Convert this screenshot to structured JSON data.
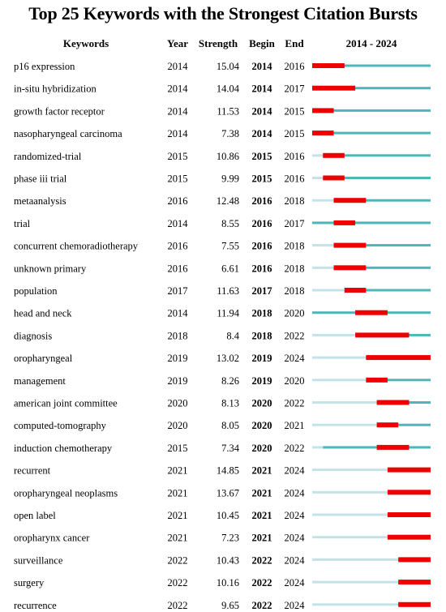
{
  "chart_data": {
    "type": "table",
    "title": "Top 25 Keywords with the Strongest Citation Bursts",
    "headers": {
      "keyword": "Keywords",
      "year": "Year",
      "strength": "Strength",
      "begin": "Begin",
      "end": "End",
      "range": "2014 - 2024"
    },
    "range_start": 2014,
    "range_end": 2024,
    "colors": {
      "burst": "#ee0000",
      "active": "#4db6b8",
      "inactive": "#c4e3e8"
    },
    "rows": [
      {
        "keyword": "p16 expression",
        "year": "2014",
        "strength": "15.04",
        "begin": "2014",
        "end": "2016"
      },
      {
        "keyword": "in-situ hybridization",
        "year": "2014",
        "strength": "14.04",
        "begin": "2014",
        "end": "2017"
      },
      {
        "keyword": "growth factor receptor",
        "year": "2014",
        "strength": "11.53",
        "begin": "2014",
        "end": "2015"
      },
      {
        "keyword": "nasopharyngeal carcinoma",
        "year": "2014",
        "strength": "7.38",
        "begin": "2014",
        "end": "2015"
      },
      {
        "keyword": "randomized-trial",
        "year": "2015",
        "strength": "10.86",
        "begin": "2015",
        "end": "2016"
      },
      {
        "keyword": "phase iii trial",
        "year": "2015",
        "strength": "9.99",
        "begin": "2015",
        "end": "2016"
      },
      {
        "keyword": "metaanalysis",
        "year": "2016",
        "strength": "12.48",
        "begin": "2016",
        "end": "2018"
      },
      {
        "keyword": "trial",
        "year": "2014",
        "strength": "8.55",
        "begin": "2016",
        "end": "2017"
      },
      {
        "keyword": "concurrent chemoradiotherapy",
        "year": "2016",
        "strength": "7.55",
        "begin": "2016",
        "end": "2018"
      },
      {
        "keyword": "unknown primary",
        "year": "2016",
        "strength": "6.61",
        "begin": "2016",
        "end": "2018"
      },
      {
        "keyword": "population",
        "year": "2017",
        "strength": "11.63",
        "begin": "2017",
        "end": "2018"
      },
      {
        "keyword": "head and neck",
        "year": "2014",
        "strength": "11.94",
        "begin": "2018",
        "end": "2020"
      },
      {
        "keyword": "diagnosis",
        "year": "2018",
        "strength": "8.4",
        "begin": "2018",
        "end": "2022"
      },
      {
        "keyword": "oropharyngeal",
        "year": "2019",
        "strength": "13.02",
        "begin": "2019",
        "end": "2024"
      },
      {
        "keyword": "management",
        "year": "2019",
        "strength": "8.26",
        "begin": "2019",
        "end": "2020"
      },
      {
        "keyword": "american joint committee",
        "year": "2020",
        "strength": "8.13",
        "begin": "2020",
        "end": "2022"
      },
      {
        "keyword": "computed-tomography",
        "year": "2020",
        "strength": "8.05",
        "begin": "2020",
        "end": "2021"
      },
      {
        "keyword": "induction chemotherapy",
        "year": "2015",
        "strength": "7.34",
        "begin": "2020",
        "end": "2022"
      },
      {
        "keyword": "recurrent",
        "year": "2021",
        "strength": "14.85",
        "begin": "2021",
        "end": "2024"
      },
      {
        "keyword": "oropharyngeal neoplasms",
        "year": "2021",
        "strength": "13.67",
        "begin": "2021",
        "end": "2024"
      },
      {
        "keyword": "open label",
        "year": "2021",
        "strength": "10.45",
        "begin": "2021",
        "end": "2024"
      },
      {
        "keyword": "oropharynx cancer",
        "year": "2021",
        "strength": "7.23",
        "begin": "2021",
        "end": "2024"
      },
      {
        "keyword": "surveillance",
        "year": "2022",
        "strength": "10.43",
        "begin": "2022",
        "end": "2024"
      },
      {
        "keyword": "surgery",
        "year": "2022",
        "strength": "10.16",
        "begin": "2022",
        "end": "2024"
      },
      {
        "keyword": "recurrence",
        "year": "2022",
        "strength": "9.65",
        "begin": "2022",
        "end": "2024"
      }
    ]
  }
}
